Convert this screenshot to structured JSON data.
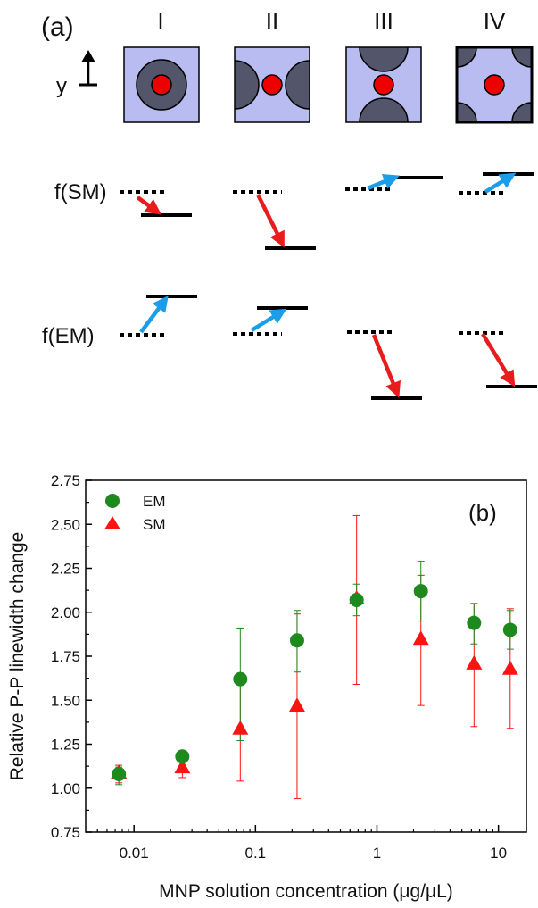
{
  "panel_a": {
    "label": "(a)",
    "axis_label": "y",
    "columns": [
      "I",
      "II",
      "III",
      "IV"
    ],
    "rows": [
      "f(SM)",
      "f(EM)"
    ],
    "colors": {
      "cell_fill": "#b8bcf0",
      "magnet_fill": "#53566a",
      "dot_fill": "#ee0000",
      "shift_up": "#1a9ee8",
      "shift_down": "#e81c1c"
    },
    "shifts": {
      "SM": [
        "down",
        "down",
        "up",
        "up"
      ],
      "EM": [
        "up",
        "up",
        "down",
        "down"
      ]
    }
  },
  "chart_data": {
    "type": "scatter",
    "panel_label": "(b)",
    "xlabel": "MNP solution concentration (μg/μL)",
    "ylabel": "Relative P-P linewidth change",
    "xscale": "log",
    "xlim": [
      0.004,
      17
    ],
    "ylim": [
      0.75,
      2.75
    ],
    "xticks": [
      0.01,
      0.1,
      1,
      10
    ],
    "xtick_labels": [
      "0.01",
      "0.1",
      "1",
      "10"
    ],
    "yticks": [
      0.75,
      1.0,
      1.25,
      1.5,
      1.75,
      2.0,
      2.25,
      2.5,
      2.75
    ],
    "ytick_labels": [
      "0.75",
      "1.00",
      "1.25",
      "1.50",
      "1.75",
      "2.00",
      "2.25",
      "2.50",
      "2.75"
    ],
    "legend_position": "top-left",
    "series": [
      {
        "name": "EM",
        "marker": "circle",
        "color": "#1e8a1e",
        "x": [
          0.0075,
          0.025,
          0.075,
          0.22,
          0.68,
          2.3,
          6.3,
          12.5
        ],
        "y": [
          1.08,
          1.18,
          1.62,
          1.84,
          2.07,
          2.12,
          1.94,
          1.9
        ],
        "err_low": [
          1.02,
          1.16,
          1.27,
          1.66,
          1.98,
          1.95,
          1.82,
          1.79
        ],
        "err_high": [
          1.12,
          1.21,
          1.91,
          2.01,
          2.16,
          2.29,
          2.05,
          2.01
        ]
      },
      {
        "name": "SM",
        "marker": "triangle",
        "color": "#ff1212",
        "x": [
          0.0075,
          0.025,
          0.075,
          0.22,
          0.68,
          2.3,
          6.3,
          12.5
        ],
        "y": [
          1.09,
          1.12,
          1.34,
          1.47,
          2.08,
          1.85,
          1.71,
          1.68
        ],
        "err_low": [
          1.03,
          1.06,
          1.04,
          0.94,
          1.59,
          1.47,
          1.35,
          1.34
        ],
        "err_high": [
          1.13,
          1.17,
          1.64,
          1.99,
          2.55,
          2.21,
          2.05,
          2.02
        ]
      }
    ]
  }
}
